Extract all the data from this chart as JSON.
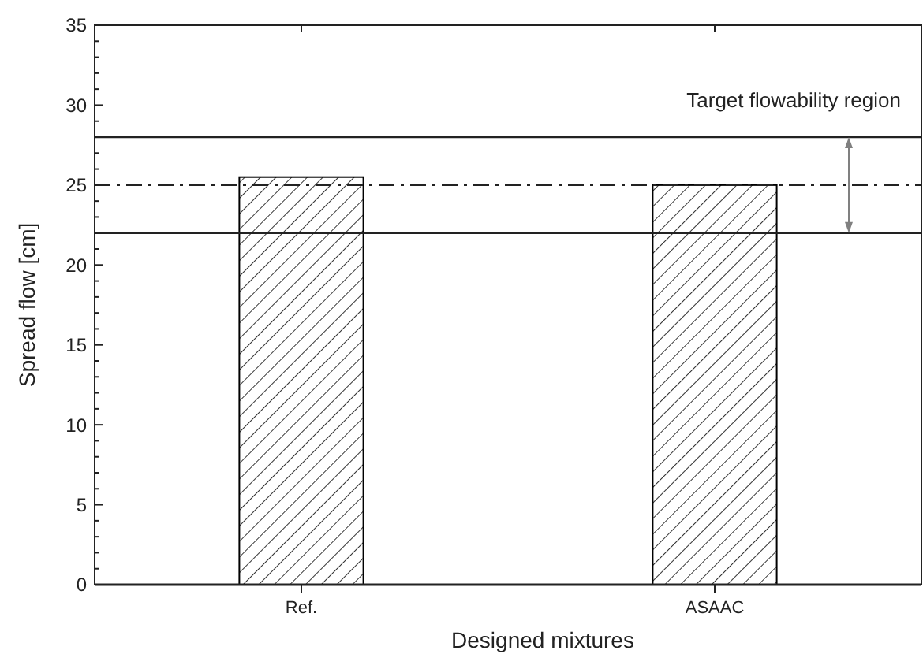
{
  "chart_data": {
    "type": "bar",
    "xlabel": "Designed mixtures",
    "ylabel": "Spread flow [cm]",
    "categories": [
      "Ref.",
      "ASAAC"
    ],
    "series": [
      {
        "color": "#000000",
        "values": [
          25.5,
          25
        ]
      }
    ],
    "ylim": [
      0,
      35
    ],
    "yticks": [
      0,
      5,
      10,
      15,
      20,
      25,
      30,
      35
    ],
    "ref_lines": [
      {
        "axis": "y",
        "value": 28,
        "line_style": "solid"
      },
      {
        "axis": "y",
        "value": 25,
        "line_style": "dashdot"
      },
      {
        "axis": "y",
        "value": 22,
        "line_style": "solid"
      }
    ],
    "annotations": [
      "Target flowability region"
    ],
    "grid": false
  }
}
